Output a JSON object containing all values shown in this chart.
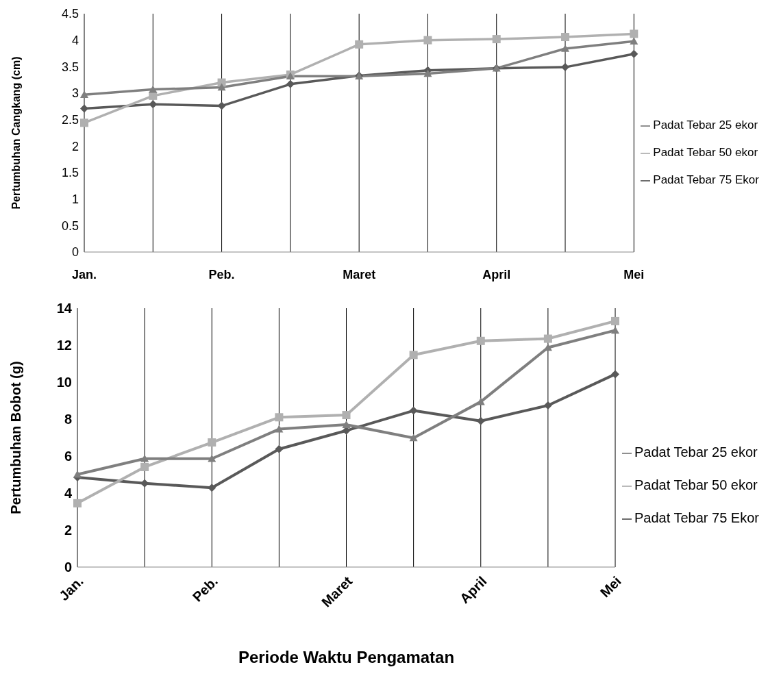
{
  "chart_data": [
    {
      "type": "line",
      "ylabel": "Pertumbuhan Cangkang (cm)",
      "categories": [
        "Jan.",
        null,
        "Peb.",
        null,
        "Maret",
        null,
        "April",
        null,
        "Mei"
      ],
      "series": [
        {
          "name": "Padat Tebar 75 Ekor",
          "color": "#595959",
          "marker": "diamond",
          "values": [
            2.71,
            2.79,
            2.76,
            3.17,
            3.33,
            3.43,
            3.47,
            3.49,
            3.74
          ]
        },
        {
          "name": "Padat Tebar 50 ekor",
          "color": "#b0b0b0",
          "marker": "square",
          "values": [
            2.44,
            2.95,
            3.2,
            3.35,
            3.92,
            4.0,
            4.02,
            4.06,
            4.12
          ]
        },
        {
          "name": "Padat Tebar 25 ekor",
          "color": "#7f7f7f",
          "marker": "triangle",
          "values": [
            2.97,
            3.07,
            3.11,
            3.32,
            3.32,
            3.37,
            3.47,
            3.84,
            3.98
          ]
        }
      ],
      "ylim": [
        0,
        4.5
      ],
      "yticks": [
        0,
        0.5,
        1,
        1.5,
        2,
        2.5,
        3,
        3.5,
        4,
        4.5
      ],
      "grid": "x",
      "legend": "right"
    },
    {
      "type": "line",
      "ylabel": "Pertumbuhan  Bobot  (g)",
      "xlabel": "Periode Waktu Pengamatan",
      "categories": [
        "Jan.",
        null,
        "Peb.",
        null,
        "Maret",
        null,
        "April",
        null,
        "Mei"
      ],
      "series": [
        {
          "name": "Padat Tebar 75 Ekor",
          "color": "#595959",
          "marker": "diamond",
          "values": [
            4.85,
            4.53,
            4.29,
            6.38,
            7.38,
            8.46,
            7.9,
            8.74,
            10.43
          ]
        },
        {
          "name": "Padat Tebar 50 ekor",
          "color": "#b0b0b0",
          "marker": "square",
          "values": [
            3.45,
            5.41,
            6.74,
            8.1,
            8.22,
            11.47,
            12.23,
            12.35,
            13.3
          ]
        },
        {
          "name": "Padat Tebar 25 ekor",
          "color": "#7f7f7f",
          "marker": "triangle",
          "values": [
            5.01,
            5.86,
            5.86,
            7.46,
            7.7,
            6.98,
            8.94,
            11.87,
            12.8
          ]
        }
      ],
      "ylim": [
        0,
        14
      ],
      "yticks": [
        0,
        2,
        4,
        6,
        8,
        10,
        12,
        14
      ],
      "grid": "x",
      "legend": "right"
    }
  ]
}
